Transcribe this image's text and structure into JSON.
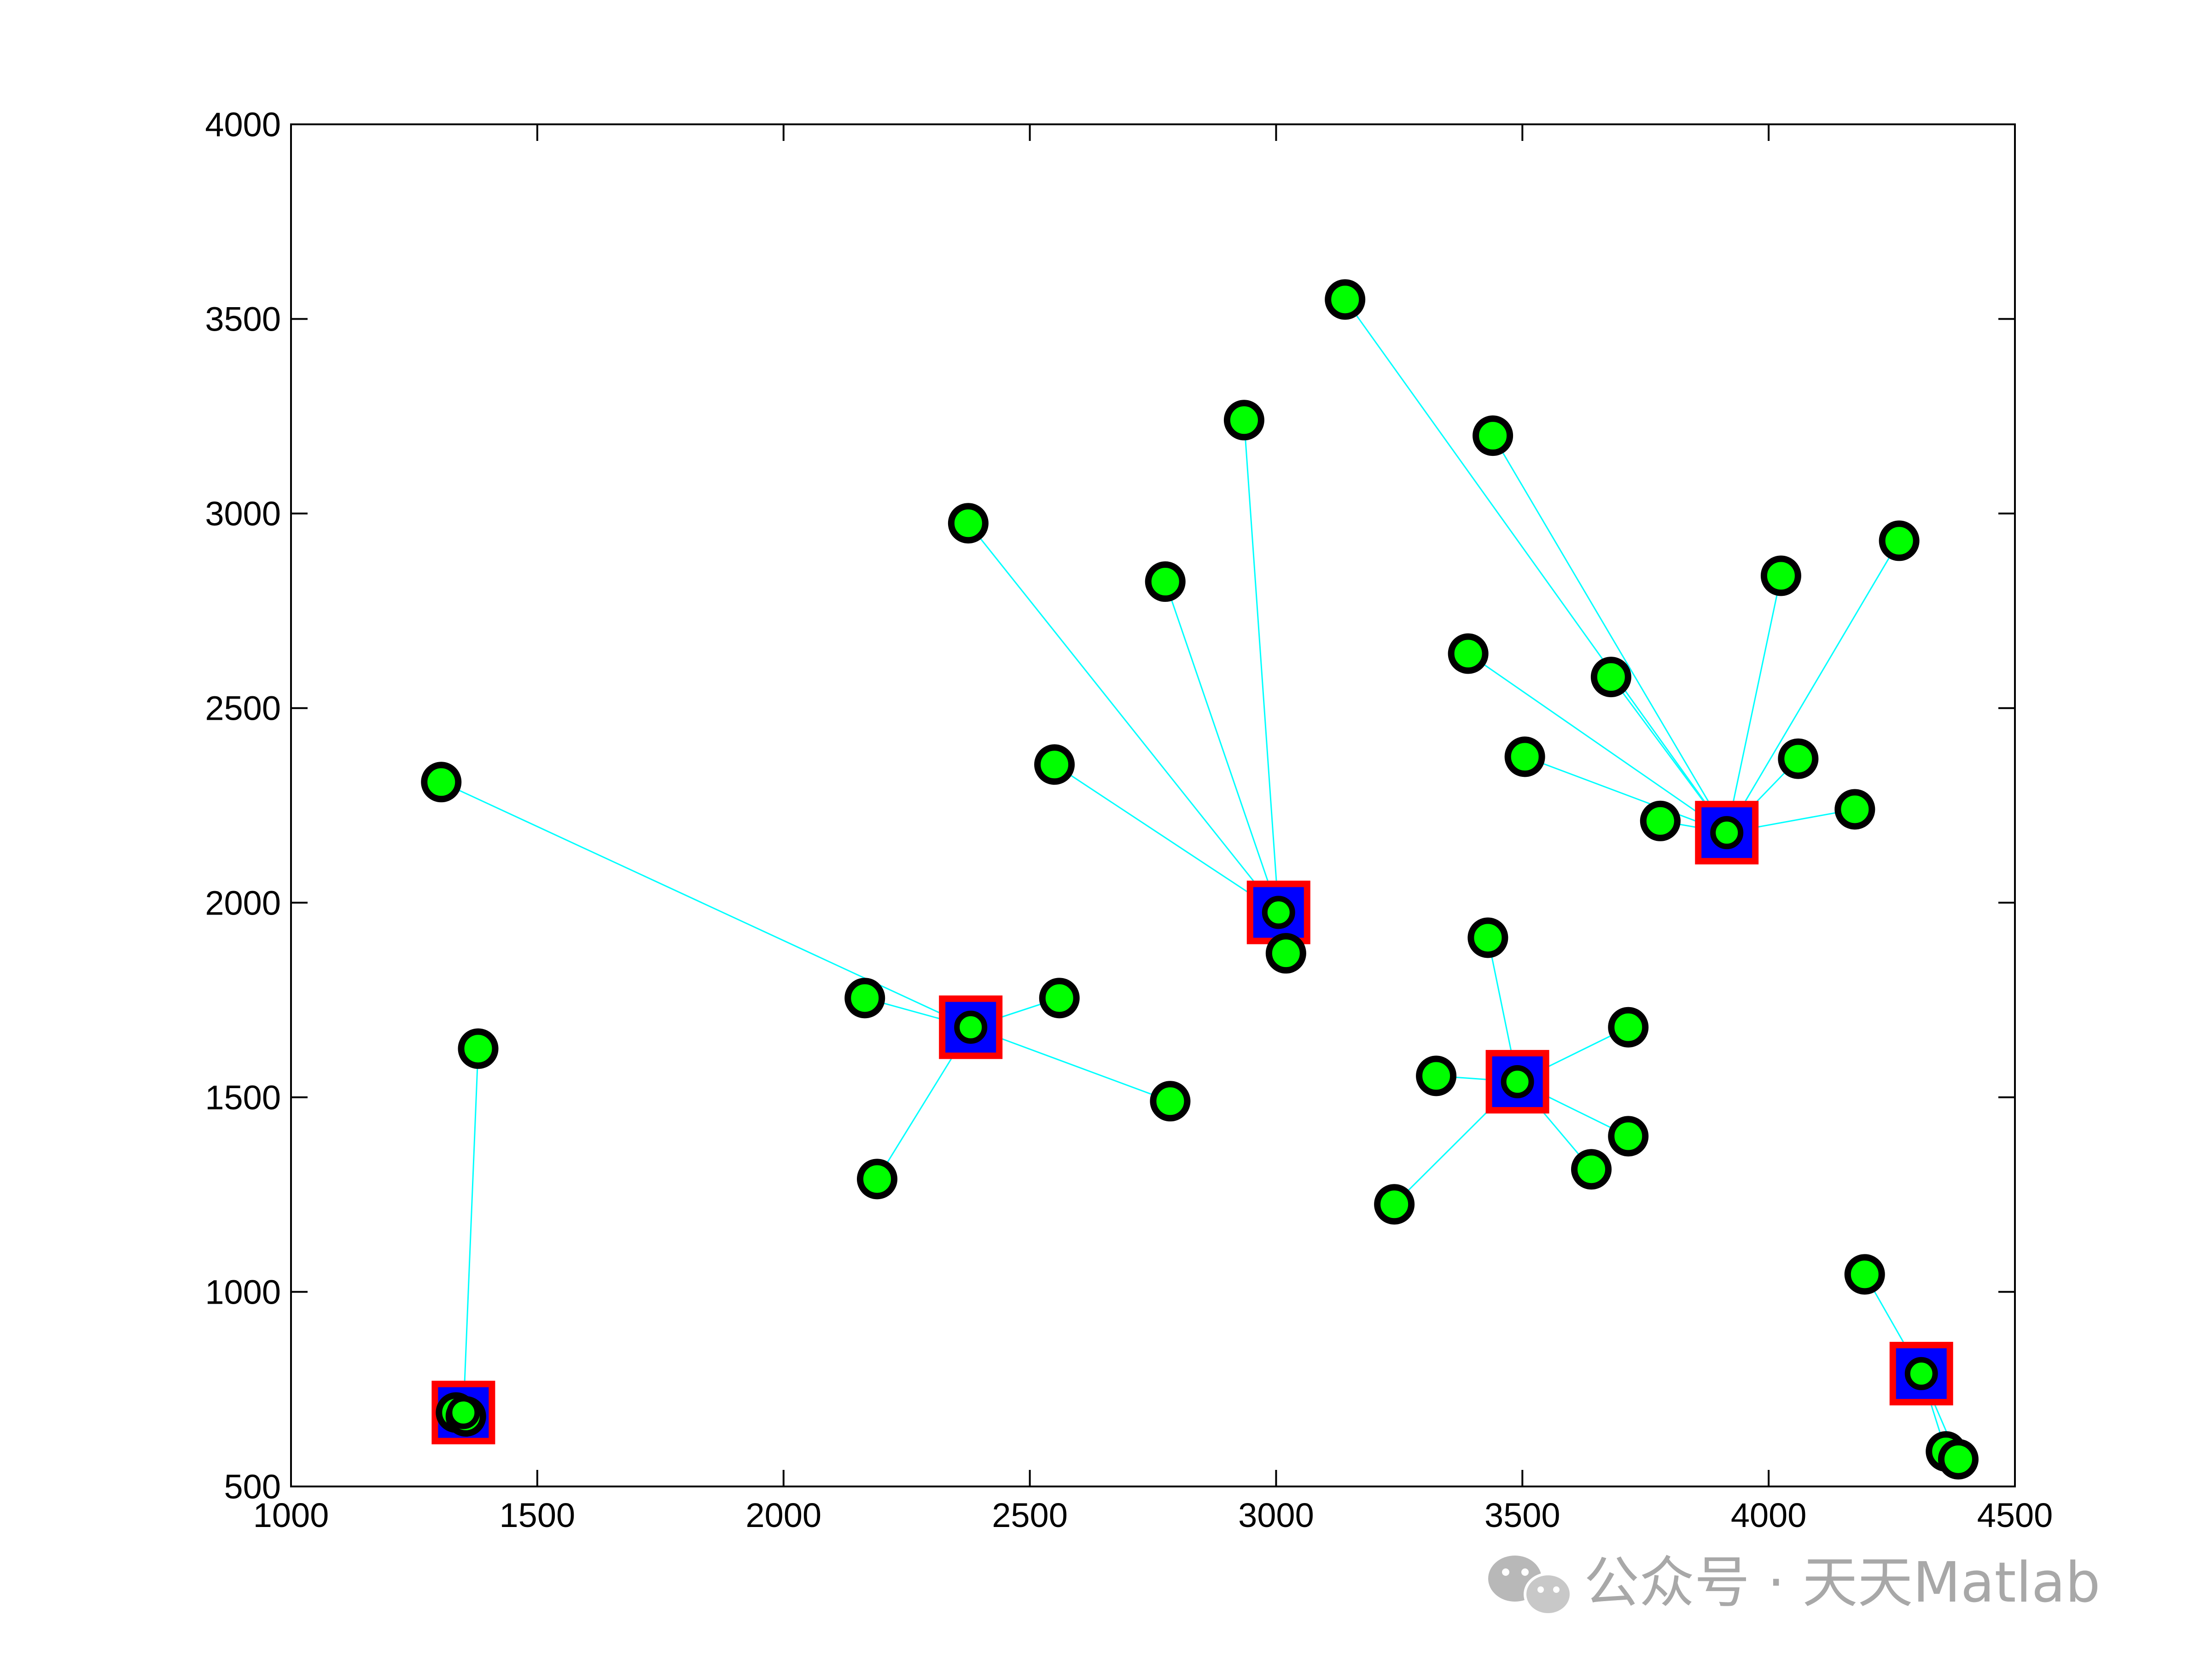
{
  "chart_data": {
    "type": "scatter",
    "title": "",
    "xlabel": "",
    "ylabel": "",
    "xlim": [
      1000,
      4500
    ],
    "ylim": [
      500,
      4000
    ],
    "xticks": [
      1000,
      1500,
      2000,
      2500,
      3000,
      3500,
      4000,
      4500
    ],
    "yticks": [
      500,
      1000,
      1500,
      2000,
      2500,
      3000,
      3500,
      4000
    ],
    "xtick_labels": [
      "1000",
      "1500",
      "2000",
      "2500",
      "3000",
      "3500",
      "4000",
      "4500"
    ],
    "ytick_labels": [
      "500",
      "1000",
      "1500",
      "2000",
      "2500",
      "3000",
      "3500",
      "4000"
    ],
    "grid": false,
    "legend": "none",
    "colors": {
      "point_fill": "#00ff00",
      "point_edge": "#000000",
      "center_edge": "#ff0000",
      "center_fill": "#0000ff",
      "link": "#00ffff"
    },
    "centers": [
      {
        "x": 1350,
        "y": 690
      },
      {
        "x": 2380,
        "y": 1680
      },
      {
        "x": 3005,
        "y": 1975
      },
      {
        "x": 3490,
        "y": 1540
      },
      {
        "x": 3915,
        "y": 2180
      },
      {
        "x": 4310,
        "y": 790
      }
    ],
    "clusters": [
      {
        "center": 0,
        "points": [
          {
            "x": 1335,
            "y": 690
          },
          {
            "x": 1355,
            "y": 680
          },
          {
            "x": 1380,
            "y": 1625
          }
        ]
      },
      {
        "center": 1,
        "points": [
          {
            "x": 1305,
            "y": 2310
          },
          {
            "x": 2165,
            "y": 1755
          },
          {
            "x": 2560,
            "y": 1755
          },
          {
            "x": 2785,
            "y": 1490
          },
          {
            "x": 2190,
            "y": 1290
          }
        ]
      },
      {
        "center": 2,
        "points": [
          {
            "x": 2375,
            "y": 2975
          },
          {
            "x": 2775,
            "y": 2825
          },
          {
            "x": 2935,
            "y": 3240
          },
          {
            "x": 2550,
            "y": 2355
          },
          {
            "x": 3020,
            "y": 1870
          }
        ]
      },
      {
        "center": 3,
        "points": [
          {
            "x": 3430,
            "y": 1910
          },
          {
            "x": 3325,
            "y": 1555
          },
          {
            "x": 3715,
            "y": 1680
          },
          {
            "x": 3715,
            "y": 1400
          },
          {
            "x": 3640,
            "y": 1315
          },
          {
            "x": 3240,
            "y": 1225
          }
        ]
      },
      {
        "center": 4,
        "points": [
          {
            "x": 3140,
            "y": 3550
          },
          {
            "x": 3440,
            "y": 3200
          },
          {
            "x": 4025,
            "y": 2840
          },
          {
            "x": 4265,
            "y": 2930
          },
          {
            "x": 3390,
            "y": 2640
          },
          {
            "x": 3680,
            "y": 2580
          },
          {
            "x": 3505,
            "y": 2375
          },
          {
            "x": 4060,
            "y": 2370
          },
          {
            "x": 3780,
            "y": 2210
          },
          {
            "x": 4175,
            "y": 2240
          }
        ]
      },
      {
        "center": 5,
        "points": [
          {
            "x": 4195,
            "y": 1045
          },
          {
            "x": 4360,
            "y": 590
          },
          {
            "x": 4385,
            "y": 570
          }
        ]
      }
    ]
  },
  "watermark": {
    "text": "公众号 · 天天Matlab",
    "icon": "wechat-icon"
  }
}
